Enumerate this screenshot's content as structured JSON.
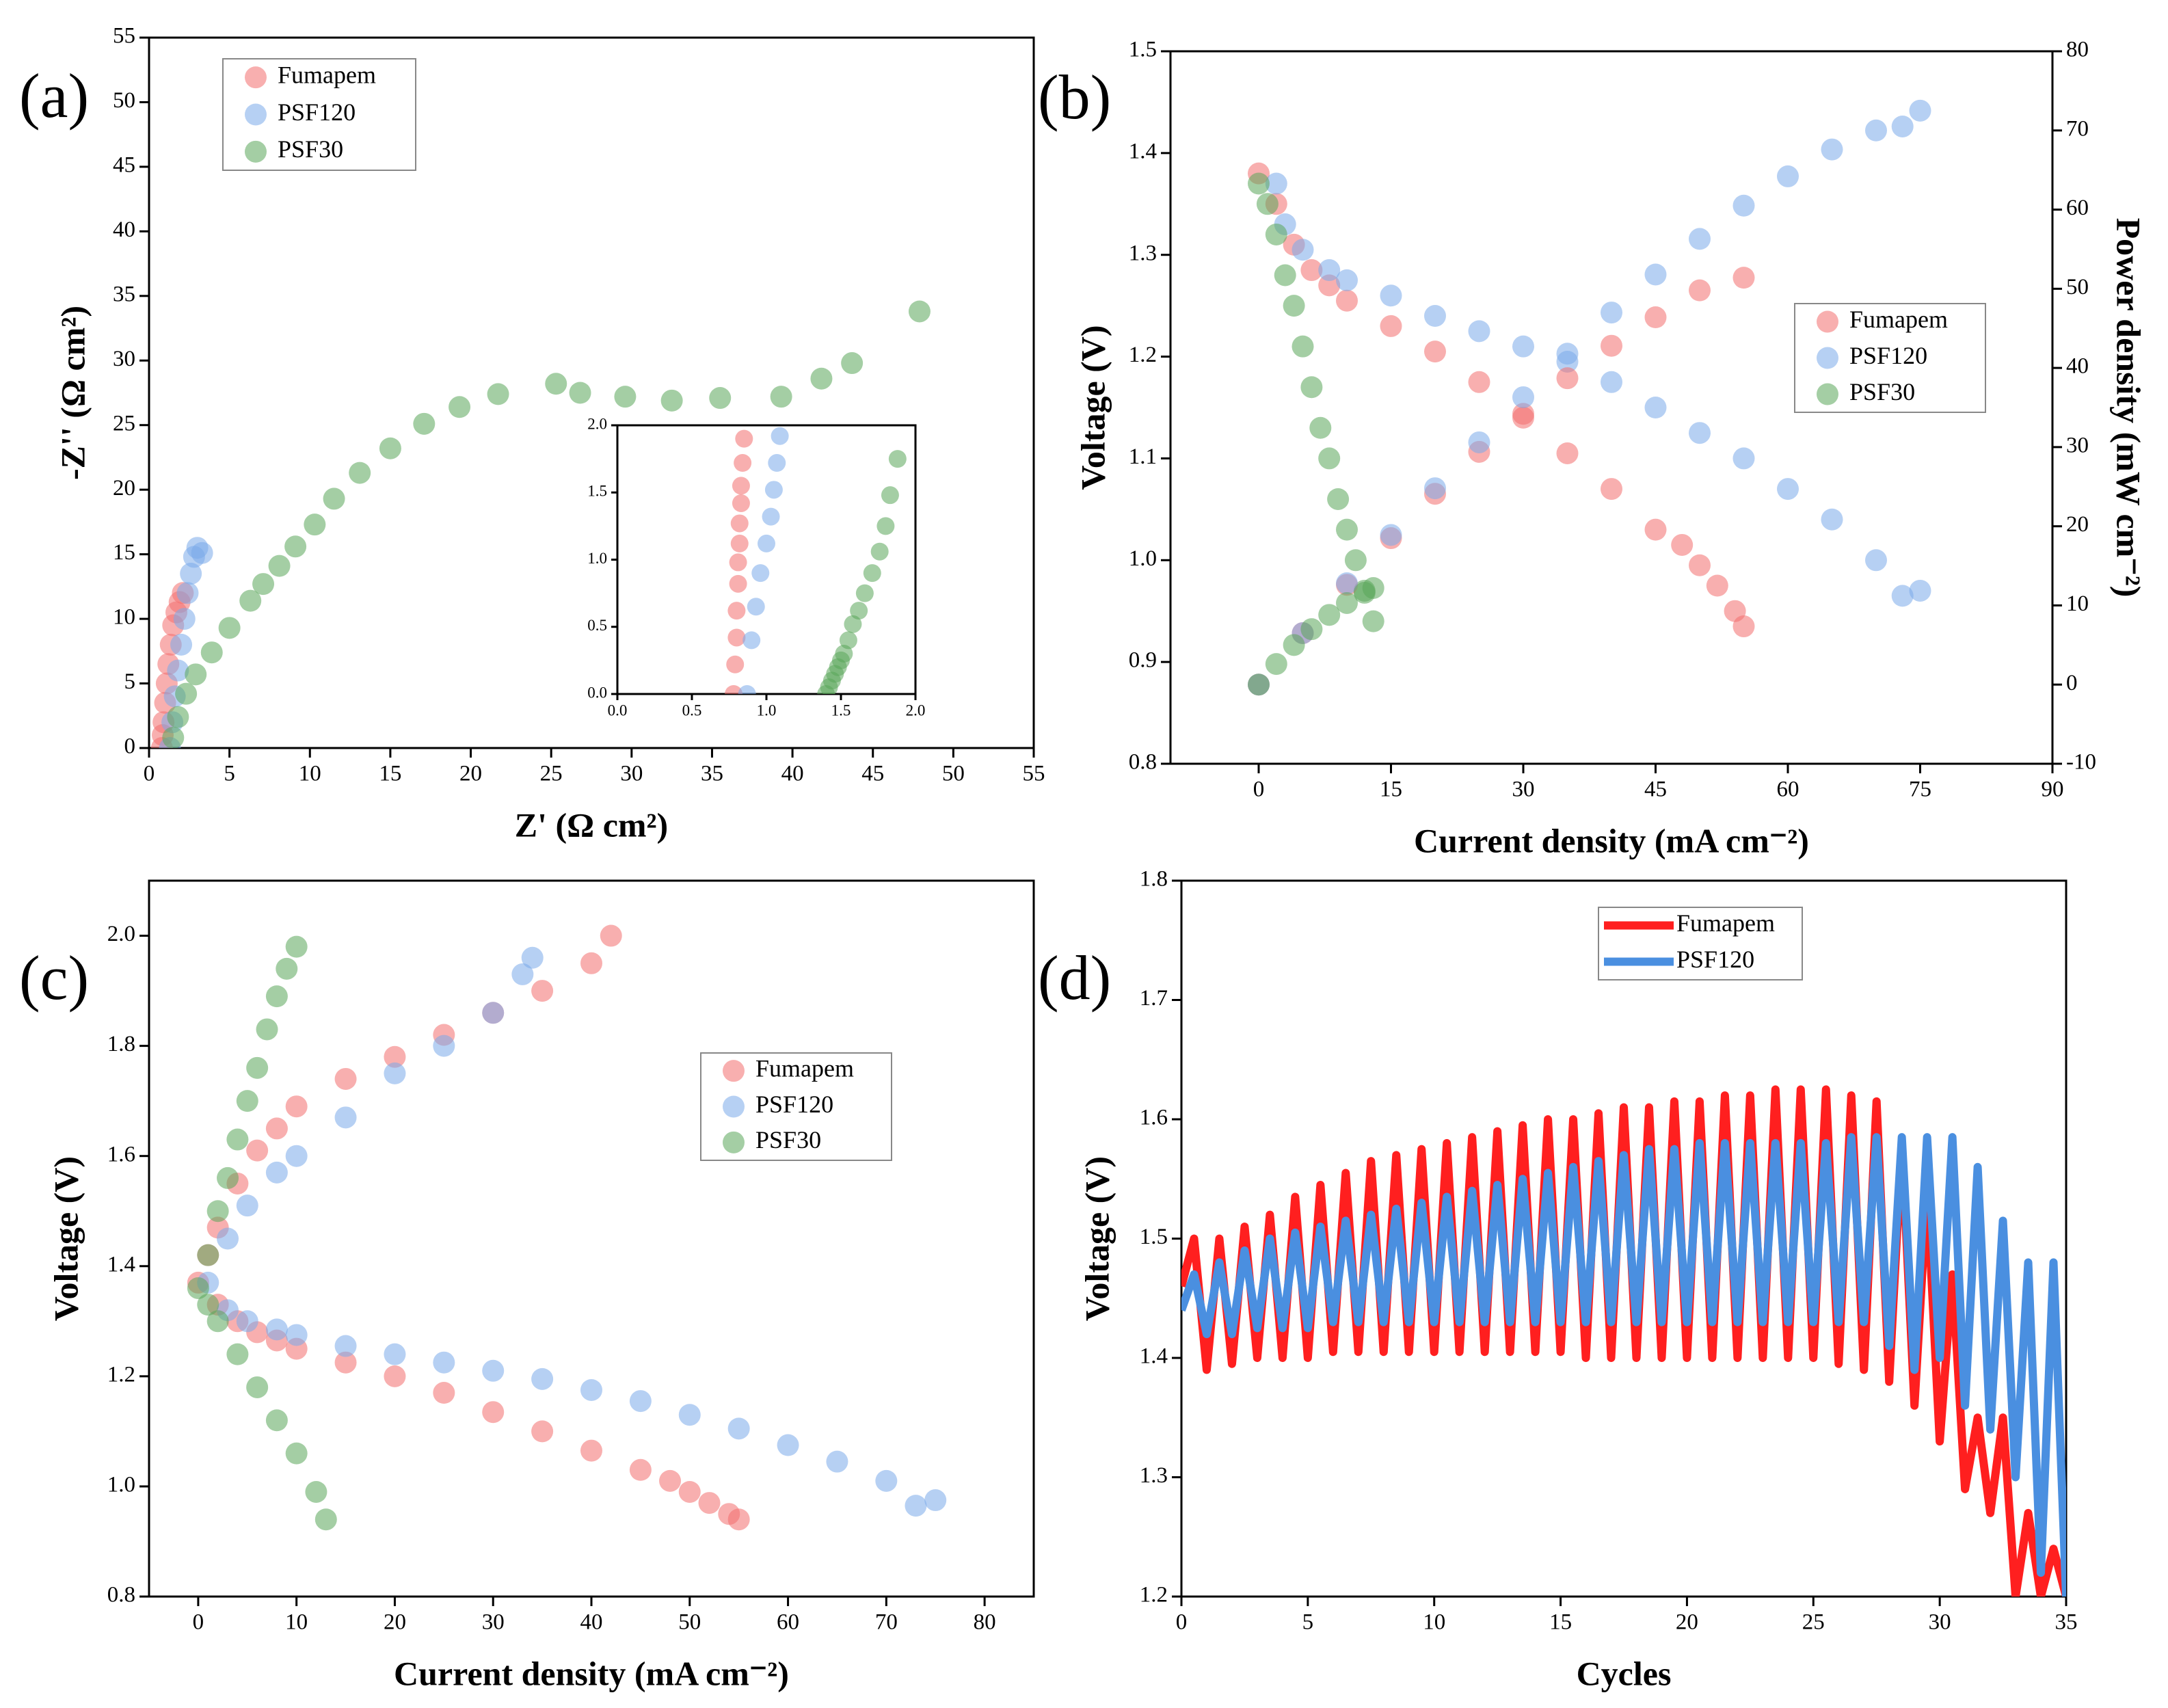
{
  "chart_data": [
    {
      "type": "scatter",
      "label": "(a)",
      "xlabel": "Z' (Ω cm²)",
      "ylabel": "-Z'' (Ω cm²)",
      "xlim": [
        0,
        55
      ],
      "xticks": [
        0,
        5,
        10,
        15,
        20,
        25,
        30,
        35,
        40,
        45,
        50,
        55
      ],
      "ylim": [
        0,
        55
      ],
      "yticks": [
        0,
        5,
        10,
        15,
        20,
        25,
        30,
        35,
        40,
        45,
        50,
        55
      ],
      "series": [
        {
          "name": "Fumapem",
          "color": "#f26d6d",
          "x": [
            0.8,
            0.85,
            0.9,
            1.0,
            1.1,
            1.2,
            1.35,
            1.5,
            1.7,
            1.9,
            2.1
          ],
          "values": [
            0,
            1,
            2,
            3.5,
            5,
            6.5,
            8,
            9.5,
            10.5,
            11.3,
            12
          ]
        },
        {
          "name": "PSF120",
          "color": "#7aa9ea",
          "x": [
            1.3,
            1.45,
            1.6,
            1.8,
            2.0,
            2.2,
            2.4,
            2.6,
            2.8,
            3.0,
            3.3
          ],
          "values": [
            0,
            2,
            4,
            6,
            8,
            10,
            12,
            13.5,
            14.8,
            15.5,
            15.1
          ]
        },
        {
          "name": "PSF30",
          "color": "#5aa65a",
          "x": [
            1.5,
            1.8,
            2.3,
            2.9,
            3.9,
            5.0,
            6.3,
            7.1,
            8.1,
            9.1,
            10.3,
            11.5,
            13.1,
            15,
            17.1,
            19.3,
            21.7,
            25.3,
            26.8,
            29.6,
            32.5,
            35.5,
            39.3,
            41.8,
            43.7,
            47.9
          ],
          "values": [
            0.8,
            2.4,
            4.2,
            5.7,
            7.4,
            9.3,
            11.4,
            12.7,
            14.1,
            15.6,
            17.3,
            19.3,
            21.3,
            23.2,
            25.1,
            26.4,
            27.4,
            28.2,
            27.5,
            27.2,
            26.9,
            27.1,
            27.2,
            28.6,
            29.8,
            33.8
          ]
        }
      ]
    },
    {
      "type": "scatter",
      "xlim": [
        0,
        2
      ],
      "xticks": [
        {
          "value": 0,
          "label": "0.0"
        },
        0.5,
        {
          "value": 1,
          "label": "1.0"
        },
        1.5,
        {
          "value": 2,
          "label": "2.0"
        }
      ],
      "ylim": [
        0,
        2
      ],
      "yticks": [
        {
          "value": 0,
          "label": "0.0"
        },
        0.5,
        {
          "value": 1,
          "label": "1.0"
        },
        1.5,
        {
          "value": 2,
          "label": "2.0"
        }
      ],
      "series": [
        {
          "color": "#f26d6d",
          "x": [
            0.78,
            0.79,
            0.8,
            0.8,
            0.81,
            0.81,
            0.82,
            0.82,
            0.83,
            0.83,
            0.84,
            0.85
          ],
          "values": [
            0,
            0.22,
            0.42,
            0.62,
            0.82,
            0.98,
            1.12,
            1.27,
            1.42,
            1.55,
            1.72,
            1.9
          ]
        },
        {
          "color": "#7aa9ea",
          "x": [
            0.87,
            0.9,
            0.93,
            0.96,
            1.0,
            1.03,
            1.05,
            1.07,
            1.09
          ],
          "values": [
            0,
            0.4,
            0.65,
            0.9,
            1.12,
            1.32,
            1.52,
            1.72,
            1.92
          ]
        },
        {
          "color": "#5aa65a",
          "x": [
            1.4,
            1.42,
            1.44,
            1.46,
            1.48,
            1.5,
            1.52,
            1.55,
            1.58,
            1.62,
            1.66,
            1.71,
            1.76,
            1.8,
            1.83,
            1.88
          ],
          "values": [
            0,
            0.05,
            0.1,
            0.15,
            0.2,
            0.25,
            0.3,
            0.4,
            0.52,
            0.62,
            0.75,
            0.9,
            1.06,
            1.25,
            1.48,
            1.75
          ]
        }
      ]
    },
    {
      "type": "scatter",
      "label": "(b)",
      "xlabel": "Current density (mA cm⁻²)",
      "ylabel": "Voltage (V)",
      "y2label": "Power density (mW cm⁻²)",
      "xlim": [
        -10,
        90
      ],
      "xticks": [
        0,
        15,
        30,
        45,
        60,
        75,
        90
      ],
      "ylim": [
        0.8,
        1.5
      ],
      "yticks": [
        0.8,
        0.9,
        {
          "value": 1,
          "label": "1.0"
        },
        1.1,
        1.2,
        1.3,
        1.4,
        1.5
      ],
      "y2lim": [
        -10,
        80
      ],
      "y2ticks": [
        -10,
        0,
        10,
        20,
        30,
        40,
        50,
        60,
        70,
        80
      ],
      "series": [
        {
          "name": "Fumapem",
          "color": "#f26d6d",
          "x": [
            0,
            2,
            4,
            6,
            8,
            10,
            15,
            20,
            25,
            30,
            35,
            40,
            45,
            48,
            50,
            52,
            54,
            55
          ],
          "values": [
            1.38,
            1.35,
            1.31,
            1.285,
            1.27,
            1.255,
            1.23,
            1.205,
            1.175,
            1.14,
            1.105,
            1.07,
            1.03,
            1.015,
            0.995,
            0.975,
            0.95,
            0.935
          ]
        },
        {
          "name": "PSF120",
          "color": "#7aa9ea",
          "x": [
            2,
            3,
            5,
            8,
            10,
            15,
            20,
            25,
            30,
            35,
            40,
            45,
            50,
            55,
            60,
            65,
            70,
            73,
            75
          ],
          "values": [
            1.37,
            1.33,
            1.305,
            1.285,
            1.275,
            1.26,
            1.24,
            1.225,
            1.21,
            1.195,
            1.175,
            1.15,
            1.125,
            1.1,
            1.07,
            1.04,
            1.0,
            0.965,
            0.97
          ]
        },
        {
          "name": "PSF30",
          "color": "#5aa65a",
          "x": [
            0,
            1,
            2,
            3,
            4,
            5,
            6,
            7,
            8,
            9,
            10,
            11,
            12,
            13
          ],
          "values": [
            1.37,
            1.35,
            1.32,
            1.28,
            1.25,
            1.21,
            1.17,
            1.13,
            1.1,
            1.06,
            1.03,
            1.0,
            0.97,
            0.94
          ]
        },
        {
          "color": "#f26d6d",
          "axis": "y2",
          "x": [
            0,
            5,
            10,
            15,
            20,
            25,
            30,
            35,
            40,
            45,
            50,
            55
          ],
          "values": [
            0,
            6.5,
            12.6,
            18.5,
            24.1,
            29.4,
            34.2,
            38.7,
            42.8,
            46.4,
            49.8,
            51.4
          ]
        },
        {
          "color": "#7aa9ea",
          "axis": "y2",
          "x": [
            0,
            5,
            10,
            15,
            20,
            25,
            30,
            35,
            40,
            45,
            50,
            55,
            60,
            65,
            70,
            73,
            75
          ],
          "values": [
            0,
            6.5,
            12.8,
            18.9,
            24.8,
            30.6,
            36.3,
            41.8,
            47,
            51.8,
            56.3,
            60.5,
            64.2,
            67.6,
            70,
            70.5,
            72.5
          ]
        },
        {
          "color": "#5aa65a",
          "axis": "y2",
          "x": [
            0,
            2,
            4,
            6,
            8,
            10,
            12,
            13
          ],
          "values": [
            0,
            2.6,
            5,
            7,
            8.8,
            10.3,
            11.6,
            12.2
          ]
        }
      ]
    },
    {
      "type": "scatter",
      "label": "(c)",
      "xlabel": "Current density (mA cm⁻²)",
      "ylabel": "Voltage (V)",
      "xlim": [
        -5,
        85
      ],
      "xticks": [
        0,
        10,
        20,
        30,
        40,
        50,
        60,
        70,
        80
      ],
      "ylim": [
        0.8,
        2.1
      ],
      "yticks": [
        0.8,
        {
          "value": 1,
          "label": "1.0"
        },
        1.2,
        1.4,
        1.6,
        1.8,
        {
          "value": 2,
          "label": "2.0"
        }
      ],
      "series": [
        {
          "name": "Fumapem",
          "color": "#f26d6d",
          "x": [
            0,
            1,
            2,
            4,
            6,
            8,
            10,
            15,
            20,
            25,
            30,
            35,
            40,
            42,
            2,
            4,
            6,
            8,
            10,
            15,
            20,
            25,
            30,
            35,
            40,
            45,
            48,
            50,
            52,
            54,
            55
          ],
          "values": [
            1.37,
            1.42,
            1.47,
            1.55,
            1.61,
            1.65,
            1.69,
            1.74,
            1.78,
            1.82,
            1.86,
            1.9,
            1.95,
            2.0,
            1.33,
            1.3,
            1.28,
            1.265,
            1.25,
            1.225,
            1.2,
            1.17,
            1.135,
            1.1,
            1.065,
            1.03,
            1.01,
            0.99,
            0.97,
            0.95,
            0.94
          ]
        },
        {
          "name": "PSF120",
          "color": "#7aa9ea",
          "x": [
            1,
            3,
            5,
            8,
            10,
            15,
            20,
            25,
            30,
            33,
            34,
            3,
            5,
            8,
            10,
            15,
            20,
            25,
            30,
            35,
            40,
            45,
            50,
            55,
            60,
            65,
            70,
            73,
            75
          ],
          "values": [
            1.37,
            1.45,
            1.51,
            1.57,
            1.6,
            1.67,
            1.75,
            1.8,
            1.86,
            1.93,
            1.96,
            1.32,
            1.3,
            1.285,
            1.275,
            1.255,
            1.24,
            1.225,
            1.21,
            1.195,
            1.175,
            1.155,
            1.13,
            1.105,
            1.075,
            1.045,
            1.01,
            0.965,
            0.975
          ]
        },
        {
          "name": "PSF30",
          "color": "#5aa65a",
          "x": [
            0,
            1,
            2,
            3,
            4,
            5,
            6,
            7,
            8,
            9,
            10,
            1,
            2,
            4,
            6,
            8,
            10,
            12,
            13
          ],
          "values": [
            1.36,
            1.42,
            1.5,
            1.56,
            1.63,
            1.7,
            1.76,
            1.83,
            1.89,
            1.94,
            1.98,
            1.33,
            1.3,
            1.24,
            1.18,
            1.12,
            1.06,
            0.99,
            0.94
          ]
        }
      ]
    },
    {
      "type": "line",
      "label": "(d)",
      "xlabel": "Cycles",
      "ylabel": "Voltage (V)",
      "xlim": [
        0,
        35
      ],
      "xticks": [
        0,
        5,
        10,
        15,
        20,
        25,
        30,
        35
      ],
      "ylim": [
        1.2,
        1.8
      ],
      "yticks": [
        1.2,
        1.3,
        1.4,
        1.5,
        1.6,
        1.7,
        1.8
      ],
      "x": [
        0,
        0.5,
        1,
        1.5,
        2,
        2.5,
        3,
        3.5,
        4,
        4.5,
        5,
        5.5,
        6,
        6.5,
        7,
        7.5,
        8,
        8.5,
        9,
        9.5,
        10,
        10.5,
        11,
        11.5,
        12,
        12.5,
        13,
        13.5,
        14,
        14.5,
        15,
        15.5,
        16,
        16.5,
        17,
        17.5,
        18,
        18.5,
        19,
        19.5,
        20,
        20.5,
        21,
        21.5,
        22,
        22.5,
        23,
        23.5,
        24,
        24.5,
        25,
        25.5,
        26,
        26.5,
        27,
        27.5,
        28,
        28.5,
        29,
        29.5,
        30,
        30.5,
        31,
        31.5,
        32,
        32.5,
        33,
        33.5,
        34,
        34.5,
        35
      ],
      "series": [
        {
          "name": "Fumapem",
          "color": "#ff1f1f",
          "values": [
            1.46,
            1.5,
            1.39,
            1.5,
            1.395,
            1.51,
            1.4,
            1.52,
            1.4,
            1.535,
            1.4,
            1.545,
            1.405,
            1.555,
            1.405,
            1.565,
            1.405,
            1.57,
            1.405,
            1.575,
            1.405,
            1.58,
            1.405,
            1.585,
            1.405,
            1.59,
            1.405,
            1.595,
            1.405,
            1.6,
            1.405,
            1.6,
            1.4,
            1.605,
            1.4,
            1.61,
            1.4,
            1.61,
            1.4,
            1.615,
            1.4,
            1.615,
            1.4,
            1.62,
            1.4,
            1.62,
            1.4,
            1.625,
            1.4,
            1.625,
            1.4,
            1.625,
            1.395,
            1.62,
            1.39,
            1.615,
            1.38,
            1.58,
            1.36,
            1.54,
            1.33,
            1.47,
            1.29,
            1.35,
            1.27,
            1.35,
            1.2,
            1.27,
            1.2,
            1.24,
            1.2
          ]
        },
        {
          "name": "PSF120",
          "color": "#4a8fe0",
          "values": [
            1.44,
            1.47,
            1.42,
            1.48,
            1.42,
            1.49,
            1.425,
            1.5,
            1.425,
            1.505,
            1.425,
            1.51,
            1.43,
            1.515,
            1.43,
            1.52,
            1.43,
            1.525,
            1.43,
            1.53,
            1.43,
            1.535,
            1.43,
            1.54,
            1.43,
            1.545,
            1.43,
            1.55,
            1.43,
            1.555,
            1.43,
            1.56,
            1.43,
            1.565,
            1.43,
            1.57,
            1.43,
            1.575,
            1.43,
            1.575,
            1.43,
            1.58,
            1.43,
            1.58,
            1.43,
            1.58,
            1.43,
            1.58,
            1.43,
            1.58,
            1.43,
            1.58,
            1.43,
            1.585,
            1.43,
            1.585,
            1.41,
            1.585,
            1.39,
            1.585,
            1.4,
            1.585,
            1.36,
            1.56,
            1.34,
            1.515,
            1.3,
            1.48,
            1.22,
            1.48,
            1.2
          ]
        }
      ]
    }
  ]
}
